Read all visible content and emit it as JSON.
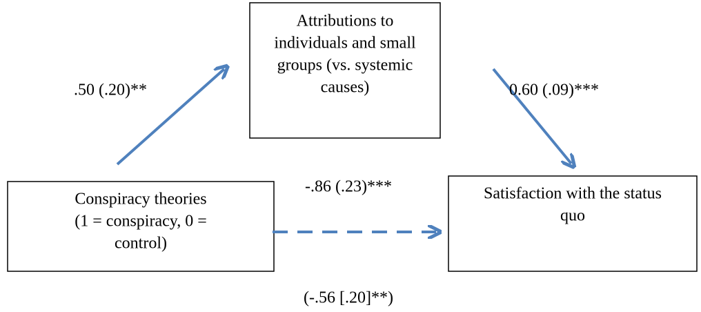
{
  "nodes": [
    {
      "label": [
        "Attributions to",
        "individuals and small",
        "groups (vs. systemic",
        "causes)"
      ]
    },
    {
      "label": [
        "Conspiracy theories",
        "(1 = conspiracy, 0 =",
        "control)"
      ]
    },
    {
      "label": [
        "Satisfaction with the status",
        "quo"
      ]
    }
  ],
  "edges": [
    {
      "label": ".50 (.20)**"
    },
    {
      "label": "0.60 (.09)***"
    },
    {
      "label": "-.86 (.23)***",
      "sublabel": "(-.56 [.20]**)"
    }
  ]
}
